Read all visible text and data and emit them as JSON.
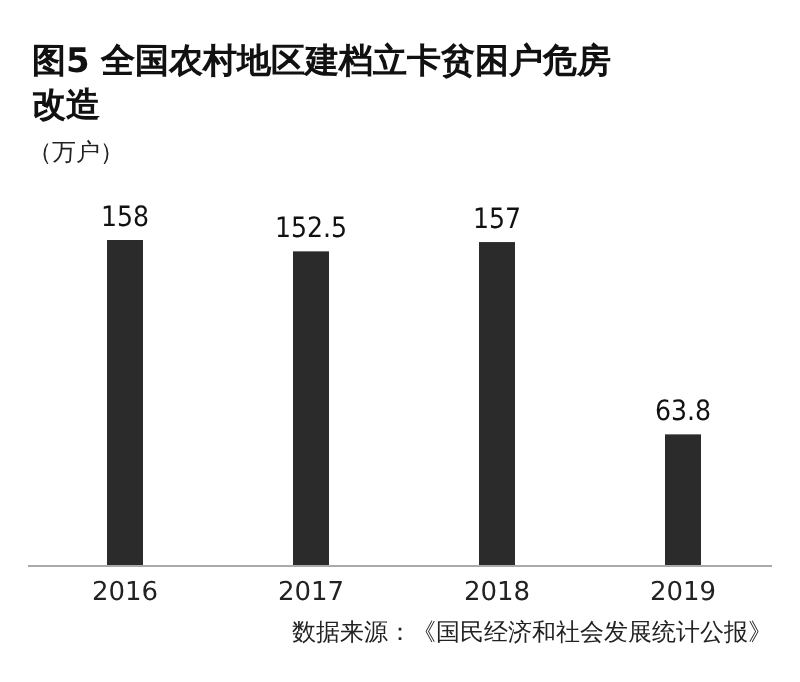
{
  "chart_data": {
    "type": "bar",
    "title": "图5 全国农村地区建档立卡贫困户危房改造",
    "ylabel": "（万户）",
    "categories": [
      "2016",
      "2017",
      "2018",
      "2019"
    ],
    "values": [
      158,
      152.5,
      157,
      63.8
    ],
    "color": "#2b2b2b",
    "data_labels": true,
    "annotations": [
      "数据来源：《国民经济和社会发展统计公报》"
    ]
  }
}
